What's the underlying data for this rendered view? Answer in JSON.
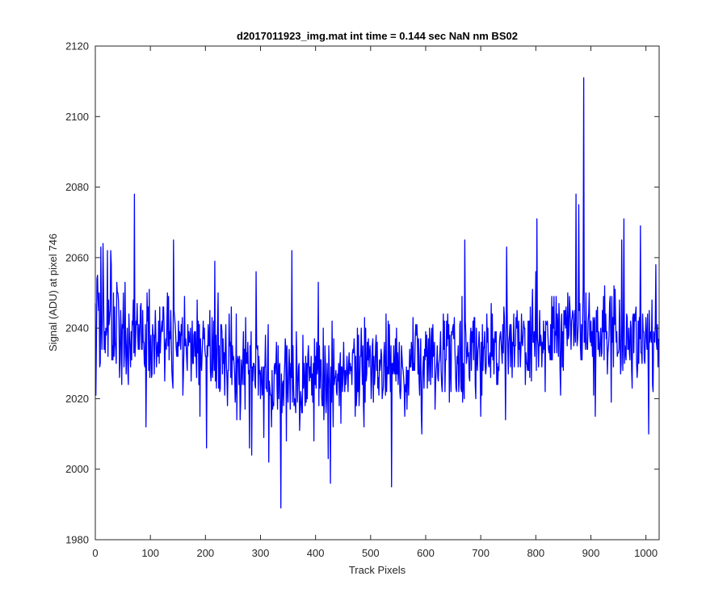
{
  "chart_data": {
    "type": "line",
    "title": "d2017011923_img.mat int time = 0.144 sec  NaN nm BS02",
    "xlabel": "Track Pixels",
    "ylabel": "Signal (ADU) at pixel 746",
    "xlim": [
      0,
      1024
    ],
    "ylim": [
      1980,
      2120
    ],
    "xticks": [
      0,
      100,
      200,
      300,
      400,
      500,
      600,
      700,
      800,
      900,
      1000
    ],
    "yticks": [
      1980,
      2000,
      2020,
      2040,
      2060,
      2080,
      2100,
      2120
    ],
    "grid": false,
    "legend": "none",
    "series": [
      {
        "color": "#0000ff",
        "noise_seed": 12345,
        "baseline": [
          [
            0,
            2040
          ],
          [
            80,
            2037
          ],
          [
            200,
            2034
          ],
          [
            300,
            2027
          ],
          [
            400,
            2025
          ],
          [
            500,
            2029
          ],
          [
            600,
            2030
          ],
          [
            700,
            2033
          ],
          [
            800,
            2036
          ],
          [
            900,
            2040
          ],
          [
            1000,
            2036
          ],
          [
            1024,
            2035
          ]
        ],
        "spikes": [
          [
            1,
            2021
          ],
          [
            4,
            2055
          ],
          [
            10,
            2063
          ],
          [
            14,
            2064
          ],
          [
            22,
            2062
          ],
          [
            28,
            2062
          ],
          [
            40,
            2050
          ],
          [
            48,
            2024
          ],
          [
            71,
            2078
          ],
          [
            92,
            2012
          ],
          [
            142,
            2065
          ],
          [
            160,
            2027
          ],
          [
            190,
            2015
          ],
          [
            202,
            2006
          ],
          [
            217,
            2059
          ],
          [
            280,
            2006
          ],
          [
            284,
            2004
          ],
          [
            292,
            2056
          ],
          [
            315,
            2002
          ],
          [
            337,
            1989
          ],
          [
            357,
            2062
          ],
          [
            397,
            2008
          ],
          [
            405,
            2053
          ],
          [
            423,
            2003
          ],
          [
            427,
            1996
          ],
          [
            538,
            1995
          ],
          [
            593,
            2010
          ],
          [
            671,
            2065
          ],
          [
            700,
            2015
          ],
          [
            745,
            2014
          ],
          [
            747,
            2063
          ],
          [
            800,
            2056
          ],
          [
            802,
            2071
          ],
          [
            873,
            2078
          ],
          [
            878,
            2075
          ],
          [
            887,
            2111
          ],
          [
            905,
            2021
          ],
          [
            908,
            2015
          ],
          [
            956,
            2065
          ],
          [
            960,
            2071
          ],
          [
            990,
            2069
          ],
          [
            1005,
            2010
          ],
          [
            1013,
            2022
          ],
          [
            1018,
            2058
          ]
        ]
      }
    ]
  }
}
